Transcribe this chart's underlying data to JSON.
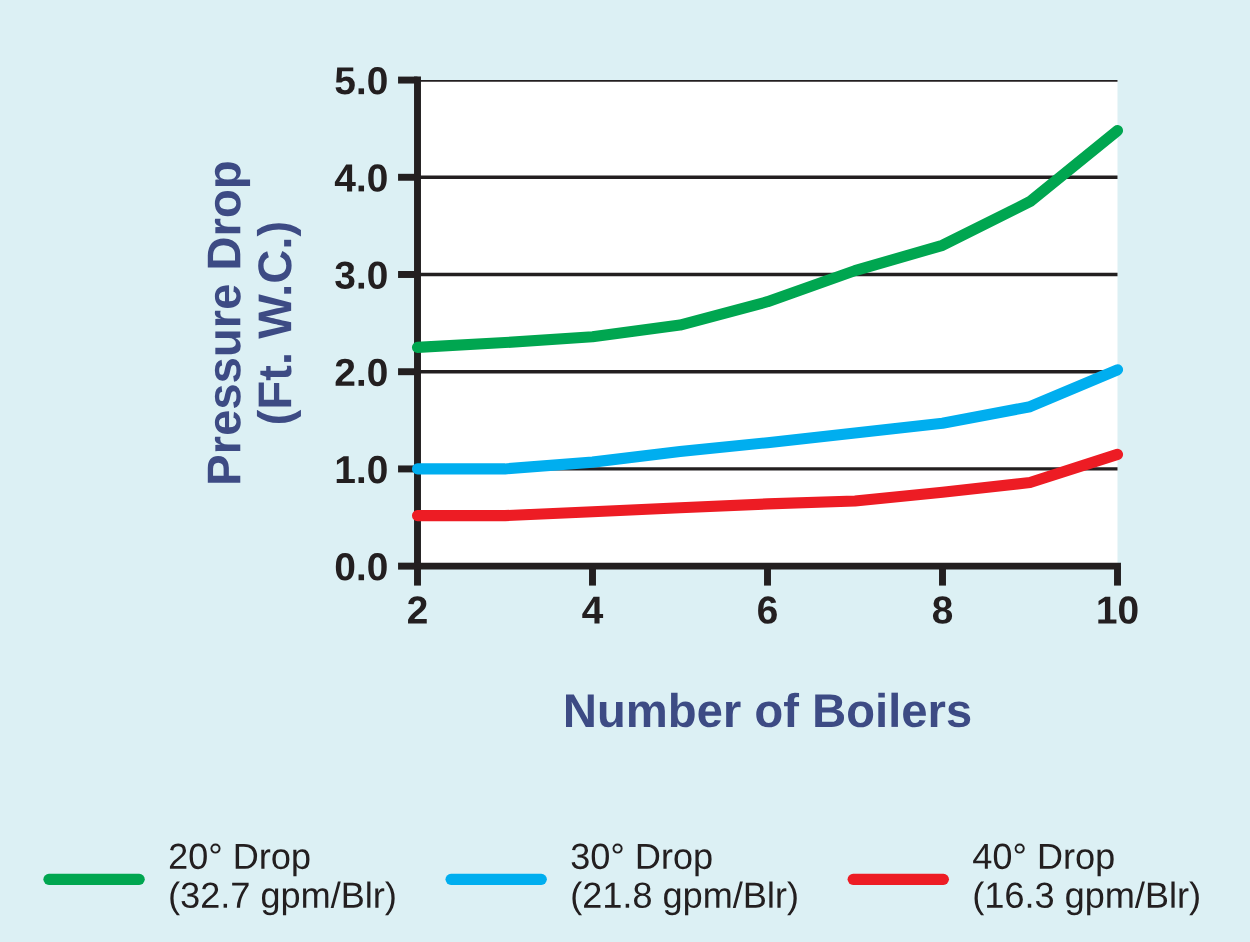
{
  "chart_data": {
    "type": "line",
    "xlabel": "Number of Boilers",
    "ylabel": "Pressure Drop\n(Ft. W.C.)",
    "x": [
      2,
      3,
      4,
      5,
      6,
      7,
      8,
      9,
      10
    ],
    "series": [
      {
        "name": "20° Drop\n(32.7 gpm/Blr)",
        "color": "#00a650",
        "values": [
          2.25,
          2.3,
          2.36,
          2.48,
          2.72,
          3.04,
          3.3,
          3.75,
          4.48
        ]
      },
      {
        "name": "30° Drop\n(21.8 gpm/Blr)",
        "color": "#00aeef",
        "values": [
          1.0,
          1.0,
          1.07,
          1.18,
          1.27,
          1.37,
          1.47,
          1.64,
          2.02
        ]
      },
      {
        "name": "40° Drop\n(16.3 gpm/Blr)",
        "color": "#ed1c24",
        "values": [
          0.52,
          0.52,
          0.56,
          0.6,
          0.64,
          0.67,
          0.76,
          0.86,
          1.15
        ]
      }
    ],
    "xlim": [
      2,
      10
    ],
    "xticks": [
      2,
      4,
      6,
      8,
      10
    ],
    "ylim": [
      0,
      5
    ],
    "yticks": [
      {
        "value": 0,
        "label": "0.0"
      },
      {
        "value": 1,
        "label": "1.0"
      },
      {
        "value": 2,
        "label": "2.0"
      },
      {
        "value": 3,
        "label": "3.0"
      },
      {
        "value": 4,
        "label": "4.0"
      },
      {
        "value": 5,
        "label": "5.0"
      }
    ],
    "grid": "y",
    "legend": "bottom",
    "marker": "none",
    "line_style": "solid"
  }
}
